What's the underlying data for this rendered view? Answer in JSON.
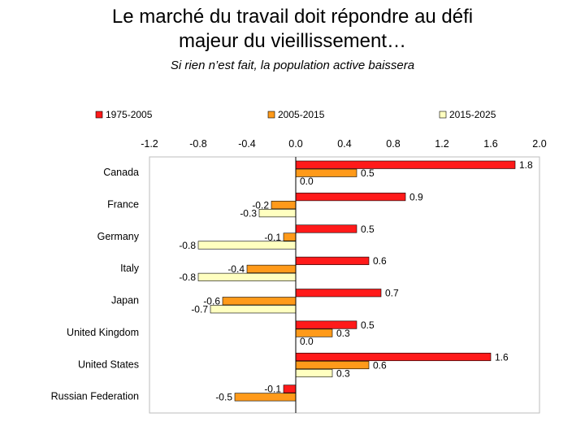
{
  "page": {
    "title_line1": "Le marché du travail doit répondre au défi",
    "title_line2": "majeur du vieillissement…",
    "subtitle": "Si rien n’est fait, la population active baissera"
  },
  "chart_data": {
    "type": "bar",
    "orientation": "horizontal",
    "xlim": [
      -1.2,
      2.0
    ],
    "ticks": [
      "-1.2",
      "-0.8",
      "-0.4",
      "0.0",
      "0.4",
      "0.8",
      "1.2",
      "1.6",
      "2.0"
    ],
    "tick_values": [
      -1.2,
      -0.8,
      -0.4,
      0.0,
      0.4,
      0.8,
      1.2,
      1.6,
      2.0
    ],
    "categories": [
      "Canada",
      "France",
      "Germany",
      "Italy",
      "Japan",
      "United Kingdom",
      "United States",
      "Russian Federation"
    ],
    "series": [
      {
        "name": "1975-2005",
        "color": "#ff1a1a",
        "values": [
          1.8,
          0.9,
          0.5,
          0.6,
          0.7,
          0.5,
          1.6,
          -0.1
        ],
        "labels": [
          "1.8",
          "0.9",
          "0.5",
          "0.6",
          "0.7",
          "0.5",
          "1.6",
          "-0.1"
        ]
      },
      {
        "name": "2005-2015",
        "color": "#ff9a1a",
        "values": [
          0.5,
          -0.2,
          -0.1,
          -0.4,
          -0.6,
          0.3,
          0.6,
          -0.5
        ],
        "labels": [
          "0.5",
          "-0.2",
          "-0.1",
          "-0.4",
          "-0.6",
          "0.3",
          "0.6",
          "-0.5"
        ]
      },
      {
        "name": "2015-2025",
        "color": "#ffffc0",
        "values": [
          0.0,
          -0.3,
          -0.8,
          -0.8,
          -0.7,
          0.0,
          0.3,
          null
        ],
        "labels": [
          "0.0",
          "-0.3",
          "-0.8",
          "-0.8",
          "-0.7",
          "0.0",
          "0.3",
          ""
        ]
      }
    ],
    "legend_position": "top",
    "grid": false
  }
}
